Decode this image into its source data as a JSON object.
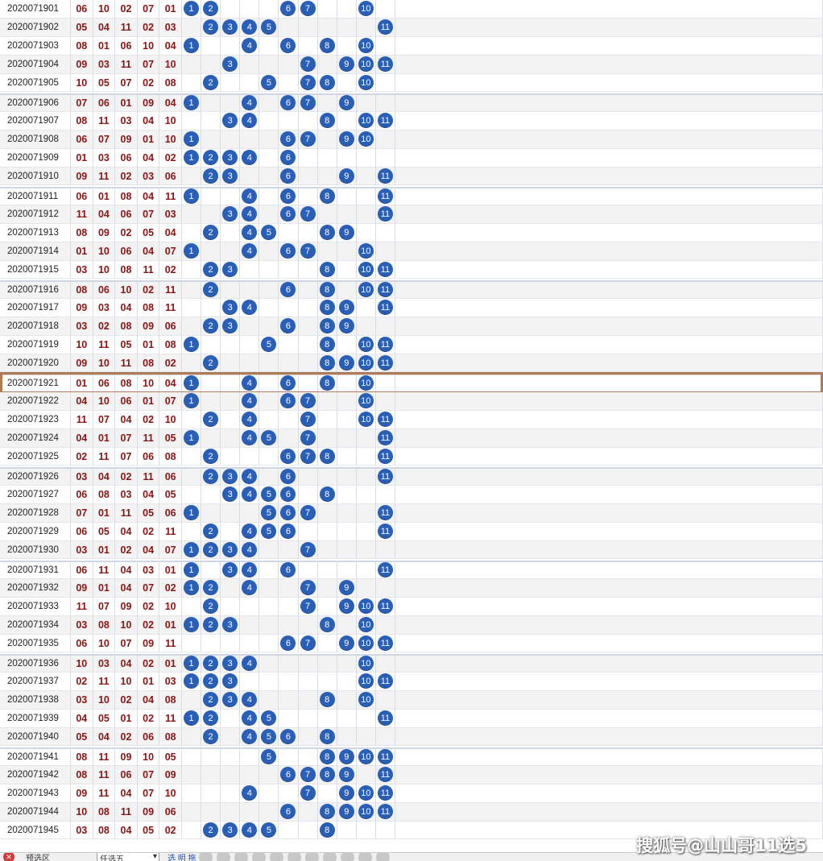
{
  "rows": [
    [
      "2020071901",
      "06",
      "10",
      "02",
      "07",
      "01"
    ],
    [
      "2020071902",
      "05",
      "04",
      "11",
      "02",
      "03"
    ],
    [
      "2020071903",
      "08",
      "01",
      "06",
      "10",
      "04"
    ],
    [
      "2020071904",
      "09",
      "03",
      "11",
      "07",
      "10"
    ],
    [
      "2020071905",
      "10",
      "05",
      "07",
      "02",
      "08"
    ],
    [
      "2020071906",
      "07",
      "06",
      "01",
      "09",
      "04"
    ],
    [
      "2020071907",
      "08",
      "11",
      "03",
      "04",
      "10"
    ],
    [
      "2020071908",
      "06",
      "07",
      "09",
      "01",
      "10"
    ],
    [
      "2020071909",
      "01",
      "03",
      "06",
      "04",
      "02"
    ],
    [
      "2020071910",
      "09",
      "11",
      "02",
      "03",
      "06"
    ],
    [
      "2020071911",
      "06",
      "01",
      "08",
      "04",
      "11"
    ],
    [
      "2020071912",
      "11",
      "04",
      "06",
      "07",
      "03"
    ],
    [
      "2020071913",
      "08",
      "09",
      "02",
      "05",
      "04"
    ],
    [
      "2020071914",
      "01",
      "10",
      "06",
      "04",
      "07"
    ],
    [
      "2020071915",
      "03",
      "10",
      "08",
      "11",
      "02"
    ],
    [
      "2020071916",
      "08",
      "06",
      "10",
      "02",
      "11"
    ],
    [
      "2020071917",
      "09",
      "03",
      "04",
      "08",
      "11"
    ],
    [
      "2020071918",
      "03",
      "02",
      "08",
      "09",
      "06"
    ],
    [
      "2020071919",
      "10",
      "11",
      "05",
      "01",
      "08"
    ],
    [
      "2020071920",
      "09",
      "10",
      "11",
      "08",
      "02"
    ],
    [
      "2020071921",
      "01",
      "06",
      "08",
      "10",
      "04"
    ],
    [
      "2020071922",
      "04",
      "10",
      "06",
      "01",
      "07"
    ],
    [
      "2020071923",
      "11",
      "07",
      "04",
      "02",
      "10"
    ],
    [
      "2020071924",
      "04",
      "01",
      "07",
      "11",
      "05"
    ],
    [
      "2020071925",
      "02",
      "11",
      "07",
      "06",
      "08"
    ],
    [
      "2020071926",
      "03",
      "04",
      "02",
      "11",
      "06"
    ],
    [
      "2020071927",
      "06",
      "08",
      "03",
      "04",
      "05"
    ],
    [
      "2020071928",
      "07",
      "01",
      "11",
      "05",
      "06"
    ],
    [
      "2020071929",
      "06",
      "05",
      "04",
      "02",
      "11"
    ],
    [
      "2020071930",
      "03",
      "01",
      "02",
      "04",
      "07"
    ],
    [
      "2020071931",
      "06",
      "11",
      "04",
      "03",
      "01"
    ],
    [
      "2020071932",
      "09",
      "01",
      "04",
      "07",
      "02"
    ],
    [
      "2020071933",
      "11",
      "07",
      "09",
      "02",
      "10"
    ],
    [
      "2020071934",
      "03",
      "08",
      "10",
      "02",
      "01"
    ],
    [
      "2020071935",
      "06",
      "10",
      "07",
      "09",
      "11"
    ],
    [
      "2020071936",
      "10",
      "03",
      "04",
      "02",
      "01"
    ],
    [
      "2020071937",
      "02",
      "11",
      "10",
      "01",
      "03"
    ],
    [
      "2020071938",
      "03",
      "10",
      "02",
      "04",
      "08"
    ],
    [
      "2020071939",
      "04",
      "05",
      "01",
      "02",
      "11"
    ],
    [
      "2020071940",
      "05",
      "04",
      "02",
      "06",
      "08"
    ],
    [
      "2020071941",
      "08",
      "11",
      "09",
      "10",
      "05"
    ],
    [
      "2020071942",
      "08",
      "11",
      "06",
      "07",
      "09"
    ],
    [
      "2020071943",
      "09",
      "11",
      "04",
      "07",
      "10"
    ],
    [
      "2020071944",
      "10",
      "08",
      "11",
      "09",
      "06"
    ],
    [
      "2020071945",
      "03",
      "08",
      "04",
      "05",
      "02"
    ]
  ],
  "highlight_issue": "2020071921",
  "footer": {
    "close": "✕",
    "label": "预选区",
    "select": "任选五",
    "arrow": "▾",
    "link": "选 明 拖"
  },
  "watermark": "搜狐号@山山哥11选5",
  "colors": {
    "ball": "#2a5fb8",
    "win": "#8a1414",
    "blue_block": "#4a8cc7",
    "red_block": "#c9505c",
    "highlight": "#b07a55"
  }
}
